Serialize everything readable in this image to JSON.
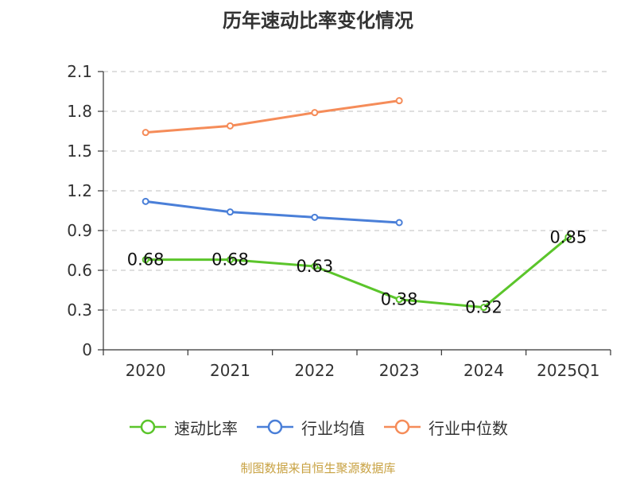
{
  "chart_data": {
    "type": "line",
    "title": "历年速动比率变化情况",
    "categories": [
      "2020",
      "2021",
      "2022",
      "2023",
      "2024",
      "2025Q1"
    ],
    "ylim": [
      0,
      2.1
    ],
    "yticks": [
      "0",
      "0.3",
      "0.6",
      "0.9",
      "1.2",
      "1.5",
      "1.8",
      "2.1"
    ],
    "grid": true,
    "legend_position": "bottom",
    "series": [
      {
        "name": "速动比率",
        "color": "#5bc52b",
        "values": [
          0.68,
          0.68,
          0.63,
          0.38,
          0.32,
          0.85
        ],
        "labels": [
          "0.68",
          "0.68",
          "0.63",
          "0.38",
          "0.32",
          "0.85"
        ]
      },
      {
        "name": "行业均值",
        "color": "#4a7fd8",
        "values": [
          1.12,
          1.04,
          1.0,
          0.96,
          null,
          null
        ]
      },
      {
        "name": "行业中位数",
        "color": "#f58c59",
        "values": [
          1.64,
          1.69,
          1.79,
          1.88,
          null,
          null
        ]
      }
    ]
  },
  "source_note": "制图数据来自恒生聚源数据库"
}
